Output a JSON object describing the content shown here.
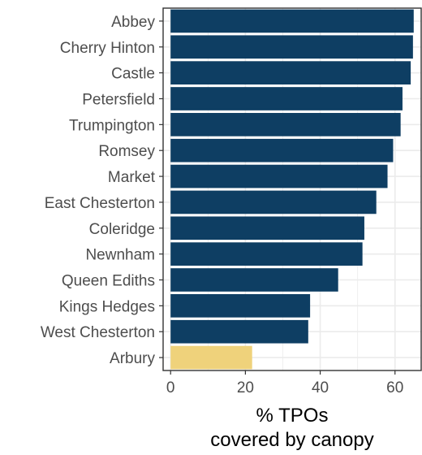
{
  "chart_data": {
    "type": "bar",
    "orientation": "horizontal",
    "categories": [
      "Abbey",
      "Cherry Hinton",
      "Castle",
      "Petersfield",
      "Trumpington",
      "Romsey",
      "Market",
      "East Chesterton",
      "Coleridge",
      "Newnham",
      "Queen Ediths",
      "Kings Hedges",
      "West Chesterton",
      "Arbury"
    ],
    "values": [
      65.0,
      64.8,
      64.2,
      62.0,
      61.5,
      59.5,
      58.0,
      55.0,
      51.8,
      51.3,
      44.8,
      37.3,
      36.8,
      21.8
    ],
    "highlight": [
      "Arbury"
    ],
    "bar_color": "#0e3e63",
    "highlight_color": "#efd27b",
    "xlabel": [
      "% TPOs",
      "covered by canopy"
    ],
    "ylabel": "",
    "xlim": [
      -2,
      67
    ],
    "xticks": [
      0,
      20,
      40,
      60
    ],
    "grid": true,
    "grid_color": "#ebebeb",
    "panel_border_color": "#333333"
  }
}
